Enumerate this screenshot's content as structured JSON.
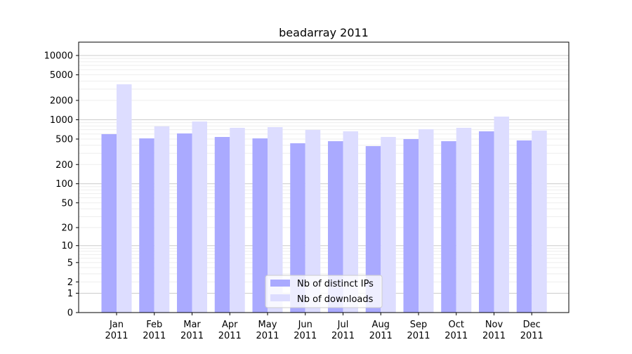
{
  "chart_data": {
    "type": "bar",
    "title": "beadarray 2011",
    "xlabel": "",
    "ylabel": "",
    "yscale": "symlog",
    "ylim": [
      0,
      13000
    ],
    "grid": true,
    "legend_position": "bottom-center",
    "categories": [
      "Jan\n2011",
      "Feb\n2011",
      "Mar\n2011",
      "Apr\n2011",
      "May\n2011",
      "Jun\n2011",
      "Jul\n2011",
      "Aug\n2011",
      "Sep\n2011",
      "Oct\n2011",
      "Nov\n2011",
      "Dec\n2011"
    ],
    "yticks": [
      0,
      1,
      2,
      5,
      10,
      20,
      50,
      100,
      200,
      500,
      1000,
      2000,
      5000,
      10000
    ],
    "series": [
      {
        "name": "Nb of distinct IPs",
        "color": "#aaaaff",
        "values": [
          597,
          512,
          611,
          539,
          512,
          430,
          463,
          388,
          500,
          463,
          660,
          476
        ]
      },
      {
        "name": "Nb of downloads",
        "color": "#ddddff",
        "values": [
          3560,
          787,
          939,
          748,
          767,
          694,
          660,
          539,
          711,
          748,
          1119,
          677
        ]
      }
    ]
  }
}
